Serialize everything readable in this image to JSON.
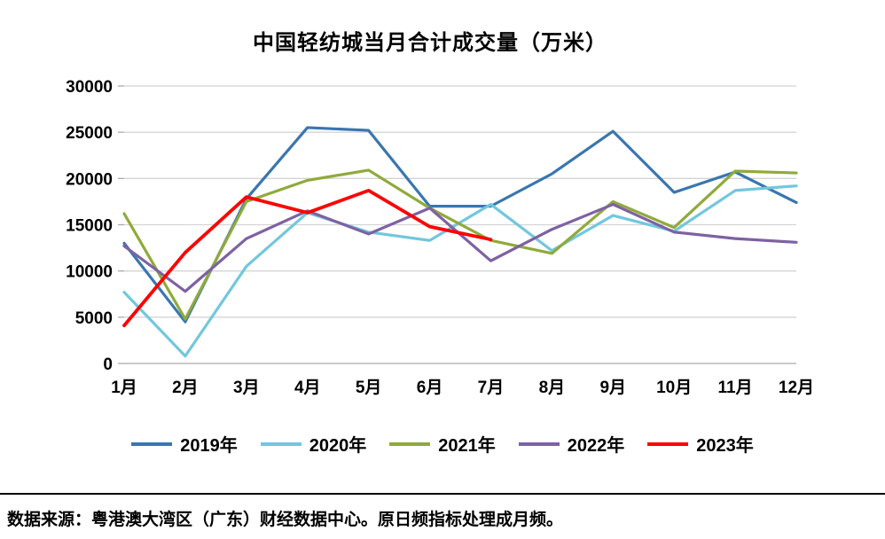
{
  "chart_data": {
    "type": "line",
    "title": "中国轻纺城当月合计成交量（万米）",
    "categories": [
      "1月",
      "2月",
      "3月",
      "4月",
      "5月",
      "6月",
      "7月",
      "8月",
      "9月",
      "10月",
      "11月",
      "12月"
    ],
    "ylim": [
      0,
      30000
    ],
    "ytick_step": 5000,
    "yticks": [
      0,
      5000,
      10000,
      15000,
      20000,
      25000,
      30000
    ],
    "grid": "horizontal",
    "legend_position": "bottom",
    "series": [
      {
        "name": "2019年",
        "color": "#3A76B0",
        "values": [
          13000,
          4500,
          17800,
          25500,
          25200,
          17000,
          17000,
          20500,
          25100,
          18500,
          20700,
          17400
        ]
      },
      {
        "name": "2020年",
        "color": "#72C7DD",
        "values": [
          7700,
          800,
          10500,
          16300,
          14200,
          13300,
          17200,
          12200,
          16000,
          14300,
          18700,
          19200
        ]
      },
      {
        "name": "2021年",
        "color": "#8FAA3B",
        "values": [
          16200,
          4800,
          17500,
          19800,
          20900,
          16800,
          13300,
          11900,
          17500,
          14700,
          20800,
          20600
        ]
      },
      {
        "name": "2022年",
        "color": "#7E61A3",
        "values": [
          12700,
          7800,
          13500,
          16500,
          14000,
          16800,
          11100,
          14500,
          17200,
          14200,
          13500,
          13100
        ]
      },
      {
        "name": "2023年",
        "color": "#FF0000",
        "values": [
          4100,
          12000,
          18000,
          16300,
          18700,
          14800,
          13400,
          null,
          null,
          null,
          null,
          null
        ]
      }
    ]
  },
  "source": {
    "text": "数据来源：粤港澳大湾区（广东）财经数据中心。原日频指标处理成月频。"
  }
}
